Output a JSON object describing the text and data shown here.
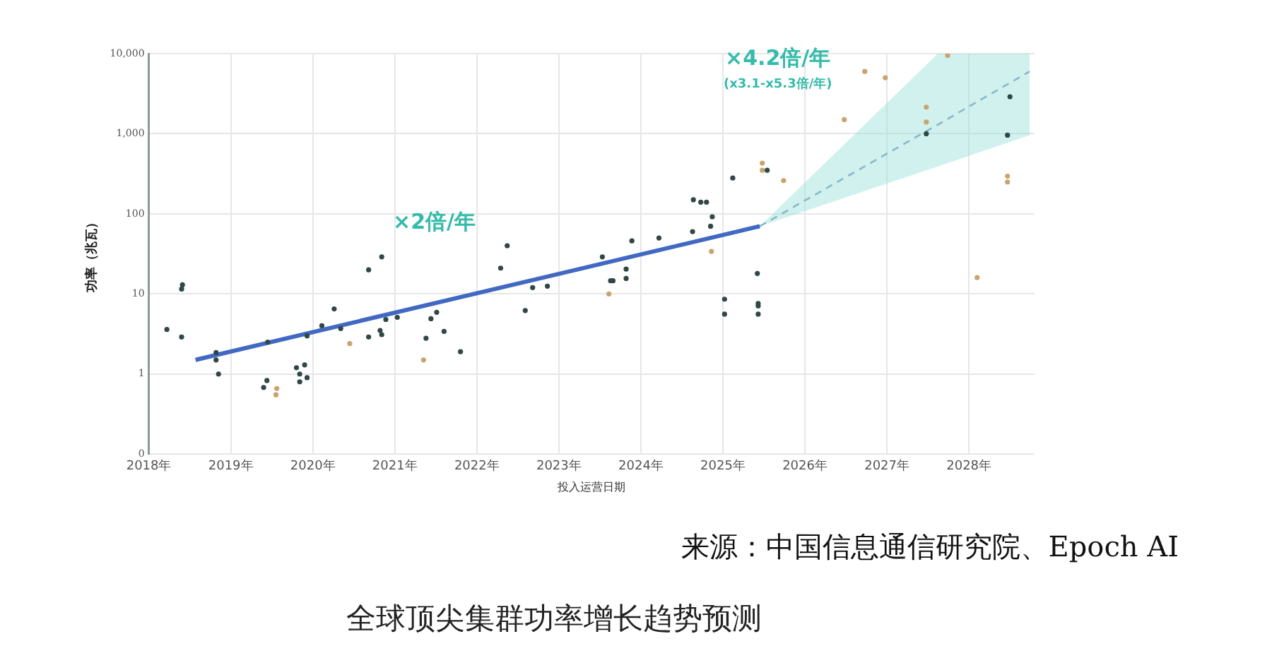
{
  "chart_data": {
    "type": "scatter",
    "title": "全球顶尖集群功率增长趋势预测",
    "xlabel": "投入运营日期",
    "ylabel": "功率（兆瓦）",
    "log": "y",
    "xlim": [
      2018,
      2028.8
    ],
    "xticks": [
      {
        "value": 2018,
        "label": "2018年"
      },
      {
        "value": 2019,
        "label": "2019年"
      },
      {
        "value": 2020,
        "label": "2020年"
      },
      {
        "value": 2021,
        "label": "2021年"
      },
      {
        "value": 2022,
        "label": "2022年"
      },
      {
        "value": 2023,
        "label": "2023年"
      },
      {
        "value": 2024,
        "label": "2024年"
      },
      {
        "value": 2025,
        "label": "2025年"
      },
      {
        "value": 2026,
        "label": "2026年"
      },
      {
        "value": 2027,
        "label": "2027年"
      },
      {
        "value": 2028,
        "label": "2028年"
      }
    ],
    "ylim": [
      0.1,
      10000
    ],
    "yticks": [
      {
        "value": 0.1,
        "label": "0"
      },
      1,
      10,
      100,
      {
        "value": 1000,
        "label": "1,000"
      },
      {
        "value": 10000,
        "label": "10,000"
      }
    ],
    "grid": true,
    "legend": false,
    "marker": "circle",
    "series": [
      {
        "color": "#2f4747",
        "x": [
          2018.22,
          2018.41,
          2018.4,
          2018.4,
          2018.82,
          2018.82,
          2018.85,
          2019.4,
          2019.44,
          2019.45,
          2019.8,
          2019.9,
          2019.84,
          2019.84,
          2019.93,
          2019.93,
          2020.11,
          2020.26,
          2020.34,
          2020.68,
          2020.68,
          2020.84,
          2020.82,
          2020.84,
          2020.89,
          2021.03,
          2021.38,
          2021.44,
          2021.51,
          2021.6,
          2021.8,
          2022.29,
          2022.37,
          2022.59,
          2022.68,
          2022.86,
          2023.53,
          2023.63,
          2023.66,
          2023.82,
          2023.82,
          2023.89,
          2024.22,
          2024.63,
          2024.64,
          2024.73,
          2024.8,
          2024.87,
          2024.85,
          2025.02,
          2025.02,
          2025.12,
          2025.42,
          2025.43,
          2025.43,
          2025.43,
          2025.54,
          2027.48,
          2028.47,
          2028.5
        ],
        "values": [
          3.6,
          13,
          11.5,
          2.9,
          1.85,
          1.5,
          1,
          0.68,
          0.83,
          2.5,
          1.2,
          1.3,
          1,
          0.8,
          0.9,
          3,
          4,
          6.5,
          3.7,
          20,
          2.9,
          29,
          3.5,
          3.1,
          4.8,
          5.1,
          2.8,
          4.9,
          5.9,
          3.4,
          1.9,
          21,
          40,
          6.2,
          12,
          12.5,
          29,
          14.6,
          14.6,
          15.6,
          20.4,
          46,
          50,
          60,
          150,
          140,
          140,
          92,
          70,
          8.6,
          5.6,
          280,
          18,
          7.6,
          7.1,
          5.6,
          350,
          1000,
          960,
          2900
        ]
      },
      {
        "color": "#c9a46e",
        "x": [
          2019.55,
          2019.56,
          2020.45,
          2021.35,
          2023.61,
          2024.86,
          2025.48,
          2025.48,
          2025.74,
          2026.48,
          2026.73,
          2026.98,
          2027.48,
          2027.48,
          2027.74,
          2028.1,
          2028.47,
          2028.47
        ],
        "values": [
          0.55,
          0.66,
          2.4,
          1.5,
          10,
          34,
          430,
          350,
          260,
          1500,
          6000,
          5000,
          2150,
          1400,
          9500,
          16,
          295,
          250
        ]
      },
      {
        "type": "line",
        "color": "#4169c4",
        "marker": "none",
        "x": [
          2018.57,
          2025.45
        ],
        "values": [
          1.5,
          70
        ]
      },
      {
        "type": "line",
        "color": "#8ab8c8",
        "marker": "none",
        "line_style": "dashed",
        "x": [
          2025.45,
          2027.62,
          2028.74
        ],
        "values": [
          70,
          1300,
          6000
        ],
        "lower": [
          70,
          390,
          960
        ],
        "upper": [
          70,
          10000,
          10000
        ]
      }
    ],
    "annotations": [
      "×2倍/年",
      "×4.2倍/年",
      "(x3.1-x5.3倍/年)",
      "来源：中国信息通信研究院、Epoch AI"
    ]
  }
}
